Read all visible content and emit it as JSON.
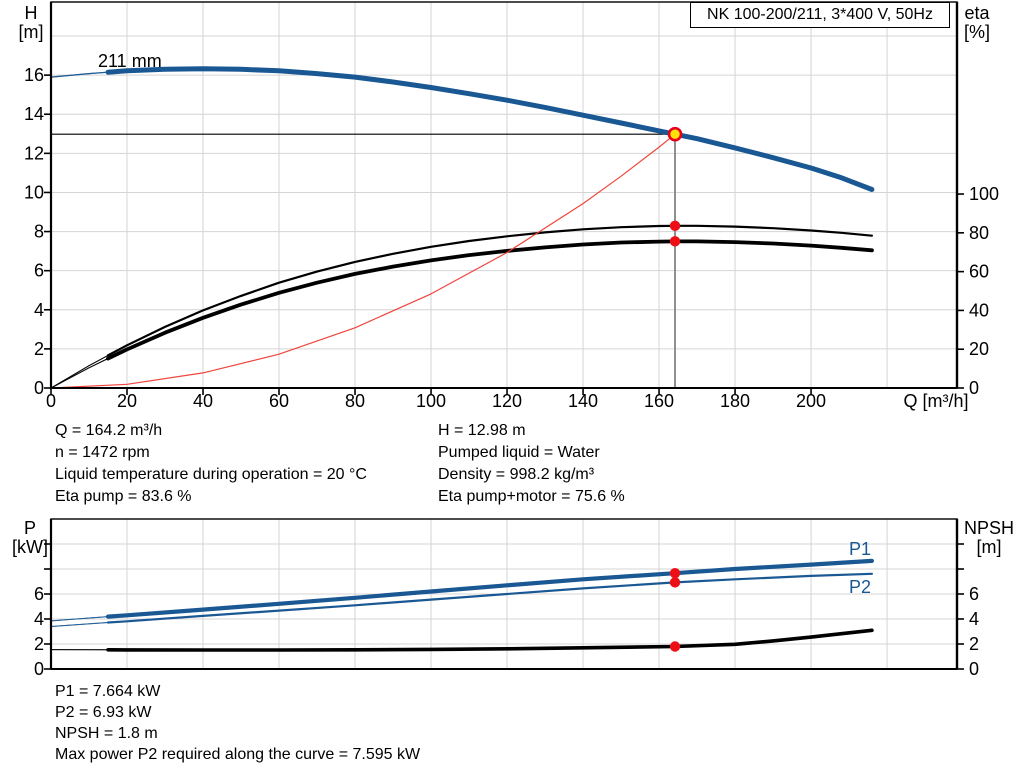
{
  "title_box": {
    "label": "NK 100-200/211, 3*400 V, 50Hz"
  },
  "axis_titles": {
    "h_line1": "H",
    "h_line2": "[m]",
    "eta_line1": "eta",
    "eta_line2": "[%]",
    "q_label": "Q [m³/h]",
    "p_line1": "P",
    "p_line2": "[kW]",
    "npsh_line1": "NPSH",
    "npsh_line2": "[m]"
  },
  "curve_labels": {
    "impeller": "211 mm",
    "p1": "P1",
    "p2": "P2"
  },
  "info_top_left": [
    "Q = 164.2 m³/h",
    "n = 1472 rpm",
    "Liquid temperature during operation = 20 °C",
    "Eta pump = 83.6 %"
  ],
  "info_top_right": [
    "H = 12.98 m",
    "Pumped liquid = Water",
    "Density = 998.2 kg/m³",
    "Eta pump+motor = 75.6 %"
  ],
  "info_bottom": [
    "P1 = 7.664 kW",
    "P2 = 6.93 kW",
    "NPSH = 1.8 m",
    "Max power P2 required along the curve = 7.595 kW"
  ],
  "colors": {
    "curve_blue": "#1a5894",
    "curve_black": "#000000",
    "system_red": "#ef3b33",
    "dot_red": "#ec1016",
    "duty_yellow": "#ffe10a",
    "duty_ring": "#e8001e",
    "grid": "#d4d4d4",
    "guide_gray": "#8f8f8f"
  },
  "chart_data": [
    {
      "type": "line",
      "title": "NK 100-200/211, 3*400 V, 50Hz",
      "xlabel": "Q [m³/h]",
      "ylabel_left": "H [m]",
      "ylabel_right": "eta [%]",
      "xlim": [
        0,
        238.4
      ],
      "ylim_left": [
        0,
        19.74
      ],
      "ylim_right": [
        0,
        199
      ],
      "x_ticks": [
        0,
        20,
        40,
        60,
        80,
        100,
        120,
        140,
        160,
        180,
        200
      ],
      "left_ticks": [
        0,
        2,
        4,
        6,
        8,
        10,
        12,
        14,
        16
      ],
      "right_ticks": [
        0,
        20,
        40,
        60,
        80,
        100
      ],
      "grid_x": [
        20,
        40,
        60,
        80,
        100,
        120,
        140,
        160,
        180,
        200,
        220
      ],
      "grid_y": [
        2,
        4,
        6,
        8,
        10,
        12,
        14,
        16,
        18
      ],
      "series": [
        {
          "name": "211 mm",
          "axis": "left",
          "role": "pump-head-curve",
          "points": [
            [
              0,
              15.9
            ],
            [
              10,
              16.08
            ],
            [
              15,
              16.15
            ],
            [
              20,
              16.22
            ],
            [
              30,
              16.3
            ],
            [
              40,
              16.33
            ],
            [
              50,
              16.3
            ],
            [
              60,
              16.22
            ],
            [
              70,
              16.08
            ],
            [
              80,
              15.9
            ],
            [
              90,
              15.65
            ],
            [
              100,
              15.37
            ],
            [
              110,
              15.05
            ],
            [
              120,
              14.72
            ],
            [
              130,
              14.35
            ],
            [
              140,
              13.95
            ],
            [
              150,
              13.55
            ],
            [
              160,
              13.15
            ],
            [
              164.2,
              12.98
            ],
            [
              170,
              12.75
            ],
            [
              180,
              12.28
            ],
            [
              190,
              11.78
            ],
            [
              200,
              11.25
            ],
            [
              208,
              10.75
            ],
            [
              216,
              10.15
            ]
          ]
        },
        {
          "name": "eta pump",
          "axis": "right",
          "role": "efficiency-pump-curve",
          "points": [
            [
              0,
              0
            ],
            [
              10,
              11.5
            ],
            [
              15,
              16.8
            ],
            [
              20,
              22
            ],
            [
              30,
              31.5
            ],
            [
              40,
              40
            ],
            [
              50,
              47.5
            ],
            [
              60,
              54.3
            ],
            [
              70,
              60
            ],
            [
              80,
              65
            ],
            [
              90,
              69.2
            ],
            [
              100,
              72.8
            ],
            [
              110,
              75.8
            ],
            [
              120,
              78.2
            ],
            [
              130,
              80.2
            ],
            [
              140,
              81.8
            ],
            [
              150,
              82.9
            ],
            [
              160,
              83.5
            ],
            [
              164.2,
              83.6
            ],
            [
              170,
              83.6
            ],
            [
              180,
              83.2
            ],
            [
              190,
              82.4
            ],
            [
              200,
              81.2
            ],
            [
              208,
              80
            ],
            [
              216,
              78.5
            ]
          ]
        },
        {
          "name": "eta pump+motor",
          "axis": "right",
          "role": "efficiency-pump-motor-curve",
          "points": [
            [
              0,
              0
            ],
            [
              10,
              10.4
            ],
            [
              15,
              15.2
            ],
            [
              20,
              19.9
            ],
            [
              30,
              28.5
            ],
            [
              40,
              36.2
            ],
            [
              50,
              43
            ],
            [
              60,
              49.1
            ],
            [
              70,
              54.3
            ],
            [
              80,
              58.8
            ],
            [
              90,
              62.6
            ],
            [
              100,
              65.8
            ],
            [
              110,
              68.5
            ],
            [
              120,
              70.7
            ],
            [
              130,
              72.5
            ],
            [
              140,
              74
            ],
            [
              150,
              75
            ],
            [
              160,
              75.5
            ],
            [
              164.2,
              75.6
            ],
            [
              170,
              75.6
            ],
            [
              180,
              75.2
            ],
            [
              190,
              74.5
            ],
            [
              200,
              73.4
            ],
            [
              208,
              72.3
            ],
            [
              216,
              71
            ]
          ]
        },
        {
          "name": "system curve",
          "axis": "left",
          "role": "system-curve",
          "points": [
            [
              0,
              0
            ],
            [
              20,
              0.19
            ],
            [
              40,
              0.77
            ],
            [
              60,
              1.73
            ],
            [
              80,
              3.08
            ],
            [
              100,
              4.81
            ],
            [
              120,
              6.93
            ],
            [
              140,
              9.43
            ],
            [
              150,
              10.83
            ],
            [
              160,
              12.32
            ],
            [
              164.2,
              12.98
            ]
          ]
        }
      ],
      "duty_point": {
        "q": 164.2,
        "h": 12.98
      },
      "markers": [
        {
          "q": 164.2,
          "value": 83.6,
          "axis": "right"
        },
        {
          "q": 164.2,
          "value": 75.6,
          "axis": "right"
        }
      ],
      "guides": {
        "hline_h": 12.98,
        "vline_q": 164.2
      }
    },
    {
      "type": "line",
      "xlabel": "",
      "ylabel_left": "P [kW]",
      "ylabel_right": "NPSH [m]",
      "xlim": [
        0,
        238.4
      ],
      "ylim_left": [
        0,
        12
      ],
      "ylim_right": [
        0,
        12
      ],
      "left_tick_labels": [
        0,
        2,
        4,
        6
      ],
      "left_ticks": [
        0,
        2,
        4,
        6,
        8,
        10
      ],
      "right_tick_labels": [
        0,
        2,
        4,
        6
      ],
      "right_ticks": [
        0,
        2,
        4,
        6,
        8,
        10
      ],
      "grid_x": [
        20,
        40,
        60,
        80,
        100,
        120,
        140,
        160,
        180,
        200,
        220
      ],
      "grid_y": [
        2,
        4,
        6,
        8,
        10
      ],
      "series": [
        {
          "name": "P1",
          "axis": "left",
          "role": "p1-curve",
          "points": [
            [
              0,
              3.85
            ],
            [
              15,
              4.19
            ],
            [
              20,
              4.3
            ],
            [
              40,
              4.75
            ],
            [
              60,
              5.22
            ],
            [
              80,
              5.7
            ],
            [
              100,
              6.2
            ],
            [
              120,
              6.7
            ],
            [
              140,
              7.18
            ],
            [
              164.2,
              7.664
            ],
            [
              180,
              8.0
            ],
            [
              200,
              8.35
            ],
            [
              216,
              8.65
            ]
          ]
        },
        {
          "name": "P2",
          "axis": "left",
          "role": "p2-curve",
          "points": [
            [
              0,
              3.4
            ],
            [
              15,
              3.72
            ],
            [
              20,
              3.82
            ],
            [
              40,
              4.25
            ],
            [
              60,
              4.67
            ],
            [
              80,
              5.1
            ],
            [
              100,
              5.55
            ],
            [
              120,
              6.0
            ],
            [
              140,
              6.45
            ],
            [
              164.2,
              6.93
            ],
            [
              180,
              7.18
            ],
            [
              200,
              7.45
            ],
            [
              216,
              7.62
            ]
          ]
        },
        {
          "name": "NPSH",
          "axis": "right",
          "role": "npsh-curve",
          "points": [
            [
              0,
              1.55
            ],
            [
              15,
              1.54
            ],
            [
              20,
              1.53
            ],
            [
              40,
              1.52
            ],
            [
              60,
              1.52
            ],
            [
              80,
              1.54
            ],
            [
              100,
              1.57
            ],
            [
              120,
              1.62
            ],
            [
              140,
              1.7
            ],
            [
              164.2,
              1.8
            ],
            [
              180,
              1.98
            ],
            [
              190,
              2.25
            ],
            [
              200,
              2.55
            ],
            [
              216,
              3.1
            ]
          ]
        }
      ],
      "markers": [
        {
          "q": 164.2,
          "value": 7.664,
          "axis": "left"
        },
        {
          "q": 164.2,
          "value": 6.93,
          "axis": "left"
        },
        {
          "q": 164.2,
          "value": 1.8,
          "axis": "right"
        }
      ]
    }
  ]
}
